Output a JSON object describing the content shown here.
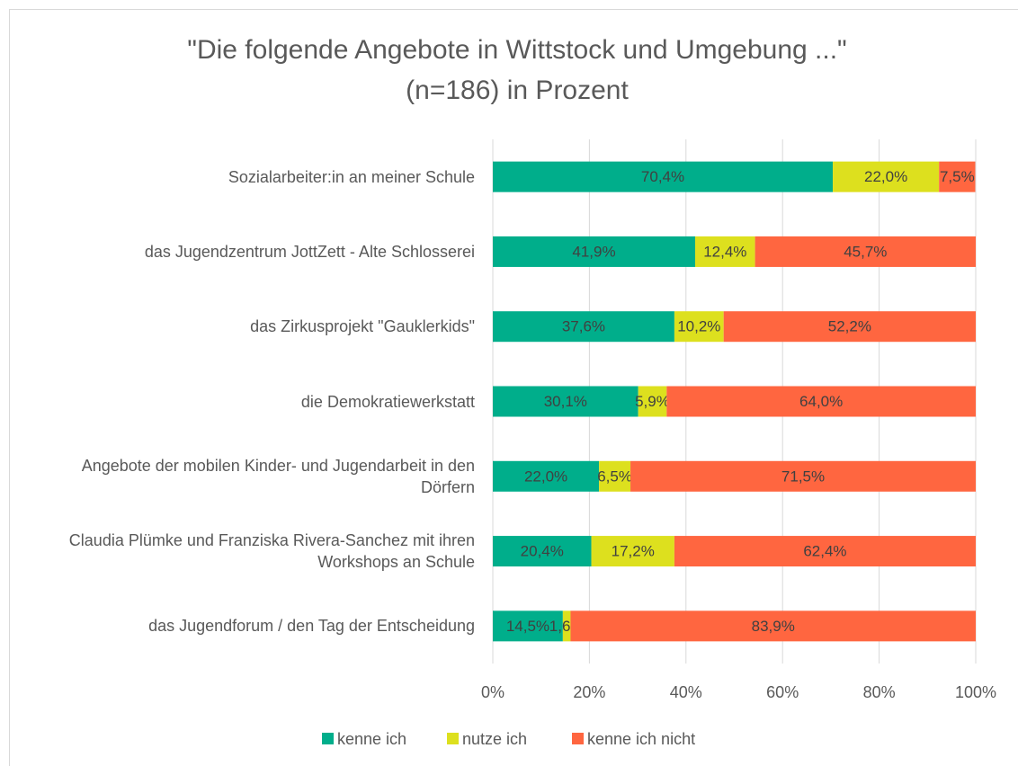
{
  "chart_data": {
    "type": "stacked_bar_horizontal",
    "title": [
      "\"Die folgende Angebote in Wittstock und Umgebung ...\"",
      "(n=186) in Prozent"
    ],
    "categories": [
      "Sozialarbeiter:in an meiner Schule",
      "das Jugendzentrum JottZett - Alte Schlosserei",
      "das Zirkusprojekt \"Gauklerkids\"",
      "die Demokratiewerkstatt",
      "Angebote der mobilen Kinder- und Jugendarbeit in den Dörfern",
      "Claudia Plümke und Franziska Rivera-Sanchez mit ihren Workshops an Schule",
      "das Jugendforum / den Tag der Entscheidung"
    ],
    "series": [
      {
        "name": "kenne ich",
        "color": "#00ae8b",
        "values": [
          70.4,
          41.9,
          37.6,
          30.1,
          22.0,
          20.4,
          14.5
        ],
        "value_labels": [
          "70,4%",
          "41,9%",
          "37,6%",
          "30,1%",
          "22,0%",
          "20,4%",
          "14,5%"
        ]
      },
      {
        "name": "nutze ich",
        "color": "#dde01e",
        "values": [
          22.0,
          12.4,
          10.2,
          5.9,
          6.5,
          17.2,
          1.6
        ],
        "value_labels": [
          "22,0%",
          "12,4%",
          "10,2%",
          "5,9%",
          "6,5%",
          "17,2%",
          "1,6%"
        ]
      },
      {
        "name": "kenne ich nicht",
        "color": "#ff6640",
        "values": [
          7.5,
          45.7,
          52.2,
          64.0,
          71.5,
          62.4,
          83.9
        ],
        "value_labels": [
          "7,5%",
          "45,7%",
          "52,2%",
          "64,0%",
          "71,5%",
          "62,4%",
          "83,9%"
        ]
      }
    ],
    "xlim": [
      0,
      100
    ],
    "xticks": [
      {
        "value": 0,
        "label": "0%"
      },
      {
        "value": 20,
        "label": "20%"
      },
      {
        "value": 40,
        "label": "40%"
      },
      {
        "value": 60,
        "label": "60%"
      },
      {
        "value": 80,
        "label": "80%"
      },
      {
        "value": 100,
        "label": "100%"
      }
    ],
    "grid": true,
    "legend": "bottom"
  }
}
